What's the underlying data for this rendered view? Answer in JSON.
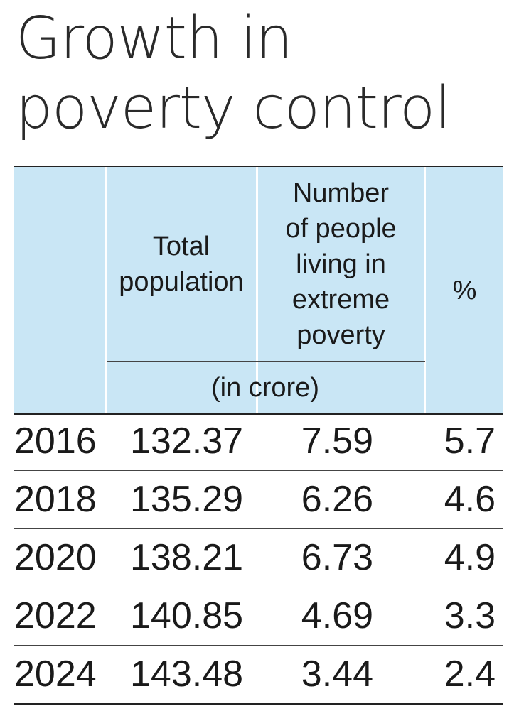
{
  "title_lines": [
    "Growth in",
    "poverty control"
  ],
  "headers": {
    "population": "Total\npopulation",
    "poverty": "Number\nof people\nliving in\nextreme\npoverty",
    "percent": "%",
    "unit_note": "(in crore)"
  },
  "chart_data": {
    "type": "table",
    "title": "Growth in poverty control",
    "columns": [
      "",
      "Total population",
      "Number of people living in extreme poverty",
      "%"
    ],
    "unit_note": "(in crore)",
    "rows": [
      {
        "year": "2016",
        "population": "132.37",
        "poverty": "7.59",
        "percent": "5.7"
      },
      {
        "year": "2018",
        "population": "135.29",
        "poverty": "6.26",
        "percent": "4.6"
      },
      {
        "year": "2020",
        "population": "138.21",
        "poverty": "6.73",
        "percent": "4.9"
      },
      {
        "year": "2022",
        "population": "140.85",
        "poverty": "4.69",
        "percent": "3.3"
      },
      {
        "year": "2024",
        "population": "143.48",
        "poverty": "3.44",
        "percent": "2.4"
      }
    ]
  },
  "colors": {
    "header_bg": "#c9e6f5",
    "text": "#1a1a1a",
    "rule": "#222222"
  }
}
